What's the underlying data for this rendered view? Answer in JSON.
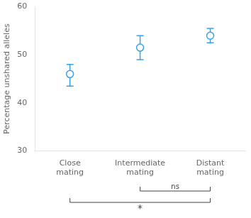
{
  "chart_data": {
    "type": "scatter",
    "categories": [
      "Close mating",
      "Intermediate mating",
      "Distant mating"
    ],
    "values": [
      46.0,
      51.5,
      54.0
    ],
    "error_plus": [
      2.0,
      2.5,
      1.5
    ],
    "error_minus": [
      2.5,
      2.5,
      1.5
    ],
    "ylabel": "Percentage unshared alleles",
    "ylim": [
      30,
      60
    ],
    "yticks": [
      30,
      40,
      50,
      60
    ],
    "grid": false,
    "annotations": [
      {
        "text": "*",
        "from": "Close mating",
        "to": "Distant mating"
      },
      {
        "text": "ns",
        "from": "Intermediate mating",
        "to": "Distant mating"
      }
    ]
  }
}
